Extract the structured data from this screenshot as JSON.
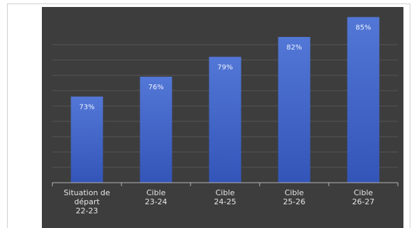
{
  "chart_data": {
    "type": "bar",
    "categories": [
      [
        "Situation de",
        "départ",
        "22-23"
      ],
      [
        "Cible",
        "23-24"
      ],
      [
        "Cible",
        "24-25"
      ],
      [
        "Cible",
        "25-26"
      ],
      [
        "Cible",
        "26-27"
      ]
    ],
    "values": [
      73,
      76,
      79,
      82,
      85
    ],
    "value_labels": [
      "73%",
      "76%",
      "79%",
      "82%",
      "85%"
    ],
    "ylim": [
      60,
      86
    ],
    "grid": true,
    "title": "",
    "xlabel": "",
    "ylabel": "",
    "colors": {
      "background": "#3d3d3d",
      "bar_top": "#5277d6",
      "bar_bottom": "#3355b8",
      "gridline": "#555555",
      "axis": "#b5b5b5"
    }
  }
}
